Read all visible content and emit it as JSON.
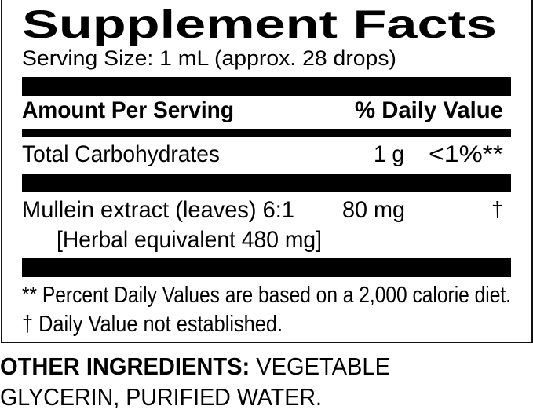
{
  "title": "Supplement Facts",
  "serving_size": "Serving Size: 1 mL (approx. 28 drops)",
  "header": {
    "amount": "Amount Per Serving",
    "daily_value": "% Daily Value"
  },
  "rows": [
    {
      "name": "Total Carbohydrates",
      "amount": "1 g",
      "dv": "<1%**"
    },
    {
      "name": "Mullein extract (leaves) 6:1",
      "sub": "[Herbal equivalent 480 mg]",
      "amount": "80 mg",
      "dv": "†"
    }
  ],
  "footnotes": [
    "** Percent Daily Values are based on a 2,000 calorie diet.",
    "† Daily Value not established."
  ],
  "other_ingredients": {
    "label": "OTHER INGREDIENTS:",
    "line1": " VEGETABLE",
    "line2": "GLYCERIN, PURIFIED WATER."
  }
}
